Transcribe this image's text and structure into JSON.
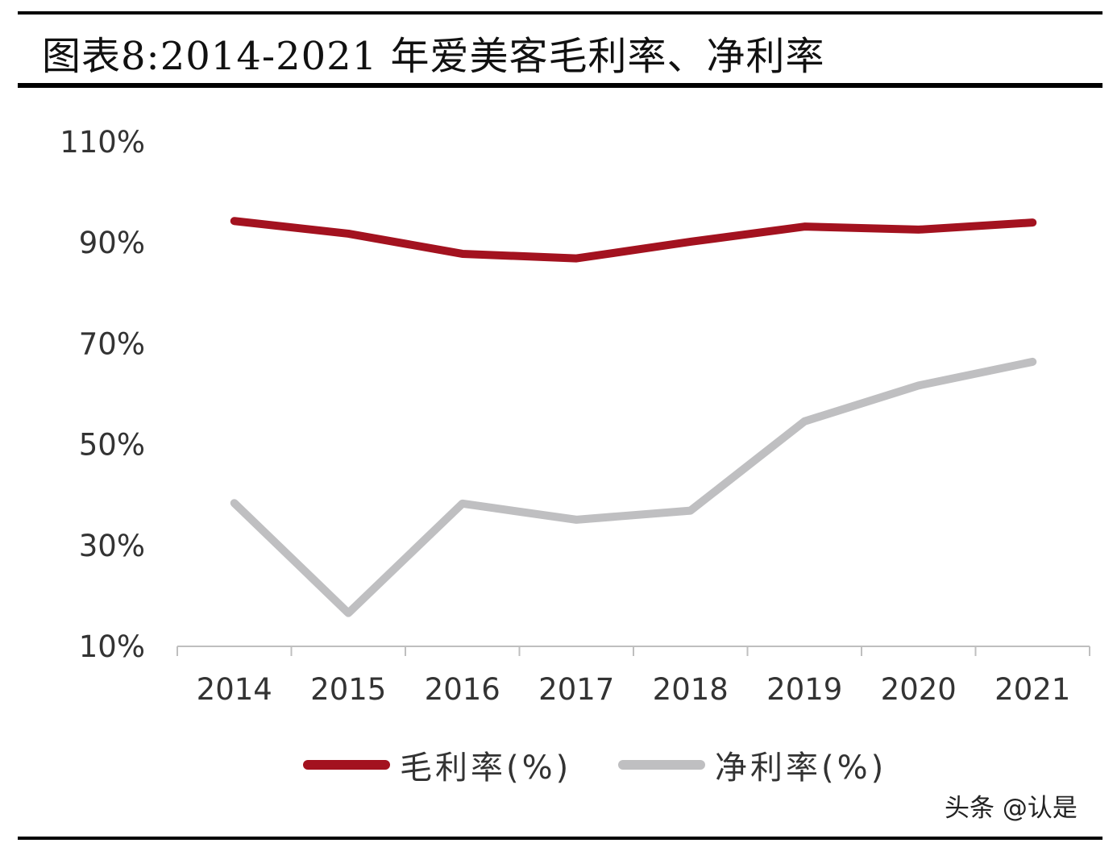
{
  "header": {
    "title": "图表8:2014-2021 年爱美客毛利率、净利率"
  },
  "watermark": "头条 @认是",
  "chart_data": {
    "type": "line",
    "title": "图表8:2014-2021 年爱美客毛利率、净利率",
    "x": [
      "2014",
      "2015",
      "2016",
      "2017",
      "2018",
      "2019",
      "2020",
      "2021"
    ],
    "y_ticks": [
      "10%",
      "30%",
      "50%",
      "70%",
      "90%",
      "110%"
    ],
    "ylim": [
      10,
      110
    ],
    "grid": false,
    "legend_position": "bottom",
    "series": [
      {
        "name": "毛利率(%)",
        "color": "#a3121f",
        "values": [
          94.3,
          91.8,
          87.8,
          86.9,
          90.2,
          93.2,
          92.6,
          94.0
        ]
      },
      {
        "name": "净利率(%)",
        "color": "#bfbfc1",
        "values": [
          38.4,
          16.6,
          38.3,
          35.1,
          36.9,
          54.6,
          61.7,
          66.4
        ]
      }
    ]
  }
}
